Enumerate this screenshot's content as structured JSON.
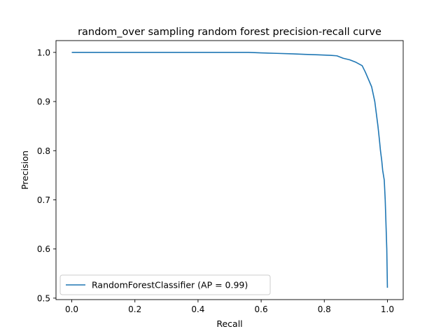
{
  "chart_data": {
    "type": "line",
    "title": "random_over sampling random forest precision-recall curve",
    "xlabel": "Recall",
    "ylabel": "Precision",
    "xlim": [
      -0.05,
      1.05
    ],
    "ylim": [
      0.497,
      1.024
    ],
    "xticks": [
      0.0,
      0.2,
      0.4,
      0.6,
      0.8,
      1.0
    ],
    "xtick_labels": [
      "0.0",
      "0.2",
      "0.4",
      "0.6",
      "0.8",
      "1.0"
    ],
    "yticks": [
      0.5,
      0.6,
      0.7,
      0.8,
      0.9,
      1.0
    ],
    "ytick_labels": [
      "0.5",
      "0.6",
      "0.7",
      "0.8",
      "0.9",
      "1.0"
    ],
    "grid": false,
    "legend": "lower-left",
    "series": [
      {
        "name": "RandomForestClassifier (AP = 0.99)",
        "color": "#1f77b4",
        "points": [
          [
            0.0,
            1.0
          ],
          [
            0.2,
            1.0
          ],
          [
            0.4,
            1.0
          ],
          [
            0.56,
            1.0
          ],
          [
            0.6,
            0.999
          ],
          [
            0.65,
            0.998
          ],
          [
            0.7,
            0.997
          ],
          [
            0.74,
            0.996
          ],
          [
            0.78,
            0.995
          ],
          [
            0.82,
            0.994
          ],
          [
            0.84,
            0.993
          ],
          [
            0.86,
            0.988
          ],
          [
            0.88,
            0.985
          ],
          [
            0.9,
            0.98
          ],
          [
            0.92,
            0.973
          ],
          [
            0.93,
            0.96
          ],
          [
            0.94,
            0.945
          ],
          [
            0.95,
            0.93
          ],
          [
            0.96,
            0.9
          ],
          [
            0.965,
            0.875
          ],
          [
            0.97,
            0.85
          ],
          [
            0.975,
            0.82
          ],
          [
            0.978,
            0.8
          ],
          [
            0.982,
            0.78
          ],
          [
            0.985,
            0.76
          ],
          [
            0.99,
            0.74
          ],
          [
            0.993,
            0.7
          ],
          [
            0.996,
            0.64
          ],
          [
            0.998,
            0.6
          ],
          [
            1.0,
            0.521
          ]
        ]
      }
    ]
  }
}
